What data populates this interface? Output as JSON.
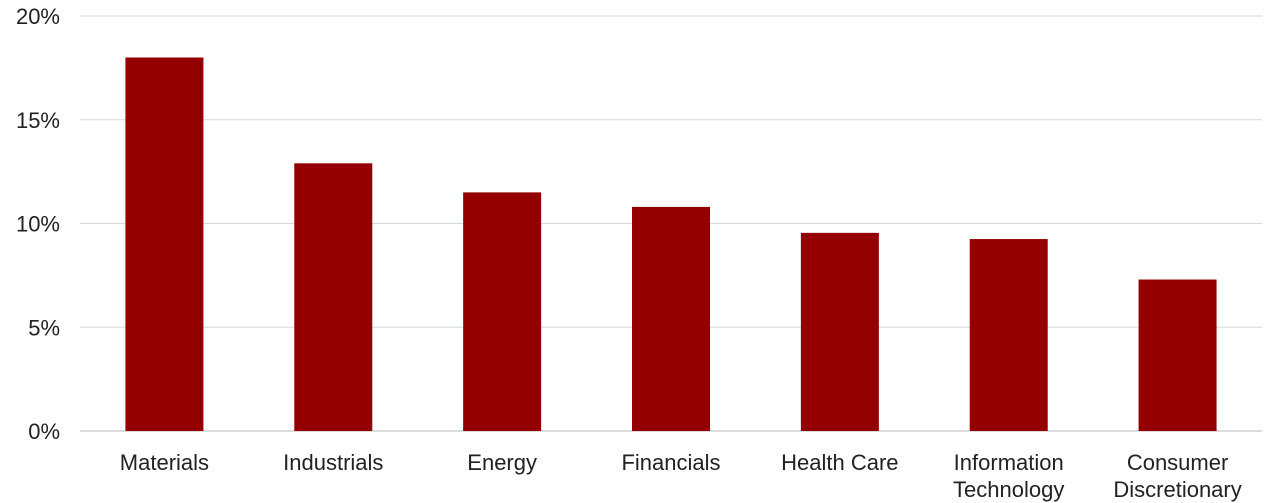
{
  "chart_data": {
    "type": "bar",
    "title": "",
    "xlabel": "",
    "ylabel": "",
    "categories": [
      [
        "Materials"
      ],
      [
        "Industrials"
      ],
      [
        "Energy"
      ],
      [
        "Financials"
      ],
      [
        "Health Care"
      ],
      [
        "Information",
        "Technology"
      ],
      [
        "Consumer",
        "Discretionary"
      ]
    ],
    "values": [
      18.0,
      12.9,
      11.5,
      10.8,
      9.55,
      9.25,
      7.3
    ],
    "ylim": [
      0,
      20
    ],
    "yticks": [
      0,
      5,
      10,
      15,
      20
    ],
    "ytick_labels": [
      "0%",
      "5%",
      "10%",
      "15%",
      "20%"
    ],
    "grid": true,
    "legend": "none",
    "bar_color": "#940000",
    "grid_color": "#d9d9d9"
  }
}
